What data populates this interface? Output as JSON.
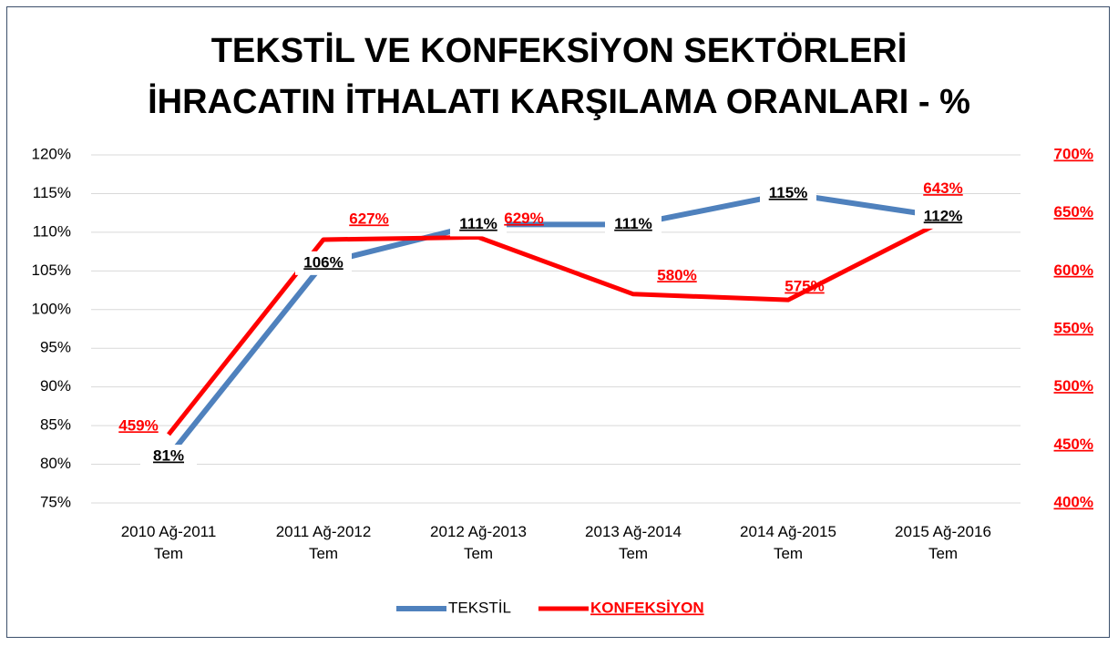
{
  "chart_data": {
    "type": "line",
    "title": "TEKSTİL VE KONFEKSİYON SEKTÖRLERİ\nİHRACATIN İTHALATI KARŞILAMA ORANLARI - %",
    "categories": [
      "2010 Ağ-2011\nTem",
      "2011 Ağ-2012\nTem",
      "2012 Ağ-2013\nTem",
      "2013 Ağ-2014\nTem",
      "2014 Ağ-2015\nTem",
      "2015 Ağ-2016\nTem"
    ],
    "series": [
      {
        "name": "TEKSTİL",
        "color": "#4f81bd",
        "values": [
          81,
          106,
          111,
          111,
          115,
          112
        ],
        "value_labels": [
          "81%",
          "106%",
          "111%",
          "111%",
          "115%",
          "112%"
        ]
      },
      {
        "name": "KONFEKSİYON",
        "color": "#ff0000",
        "axis": "y2",
        "values": [
          459,
          627,
          629,
          580,
          575,
          643
        ],
        "value_labels": [
          "459%",
          "627%",
          "629%",
          "580%",
          "575%",
          "643%"
        ]
      }
    ],
    "ylim": [
      75,
      120
    ],
    "yticks": [
      {
        "value": 75,
        "label": "75%"
      },
      {
        "value": 80,
        "label": "80%"
      },
      {
        "value": 85,
        "label": "85%"
      },
      {
        "value": 90,
        "label": "90%"
      },
      {
        "value": 95,
        "label": "95%"
      },
      {
        "value": 100,
        "label": "100%"
      },
      {
        "value": 105,
        "label": "105%"
      },
      {
        "value": 110,
        "label": "110%"
      },
      {
        "value": 115,
        "label": "115%"
      },
      {
        "value": 120,
        "label": "120%"
      }
    ],
    "y2lim": [
      400,
      700
    ],
    "y2ticks": [
      {
        "value": 400,
        "label": "400%"
      },
      {
        "value": 450,
        "label": "450%"
      },
      {
        "value": 500,
        "label": "500%"
      },
      {
        "value": 550,
        "label": "550%"
      },
      {
        "value": 600,
        "label": "600%"
      },
      {
        "value": 650,
        "label": "650%"
      },
      {
        "value": 700,
        "label": "700%"
      }
    ],
    "grid": true,
    "legend": "bottom"
  }
}
